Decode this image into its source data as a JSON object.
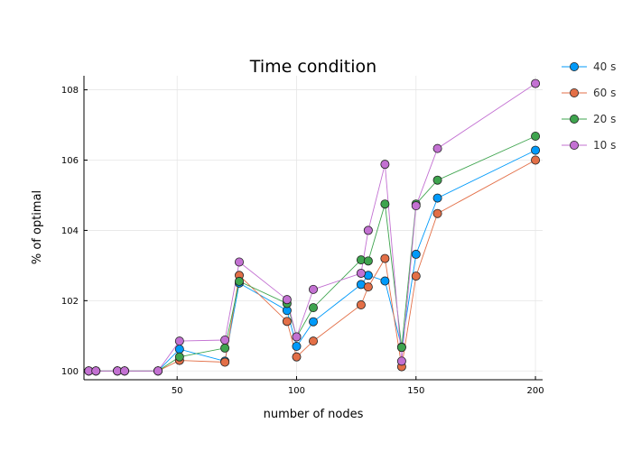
{
  "chart_data": {
    "type": "line",
    "title": "Time condition",
    "xlabel": "number of nodes",
    "ylabel": "% of optimal",
    "xlim": [
      11,
      203
    ],
    "ylim": [
      99.75,
      108.4
    ],
    "xticks": [
      50,
      100,
      150,
      200
    ],
    "yticks": [
      100,
      102,
      104,
      106,
      108
    ],
    "grid": true,
    "legend_position": "top-right",
    "x": [
      13,
      16,
      25,
      28,
      42,
      51,
      70,
      76,
      96,
      100,
      107,
      127,
      130,
      137,
      144,
      150,
      159,
      200
    ],
    "series": [
      {
        "name": "40 s",
        "color": "#009AFA",
        "values": [
          100,
          100,
          100,
          100,
          100,
          100.62,
          100.28,
          102.5,
          101.72,
          100.7,
          101.4,
          102.46,
          102.72,
          102.56,
          100.68,
          103.32,
          104.92,
          106.28
        ]
      },
      {
        "name": "60 s",
        "color": "#E36F47",
        "values": [
          100,
          100,
          100,
          100,
          100,
          100.3,
          100.25,
          102.72,
          101.41,
          100.4,
          100.85,
          101.88,
          102.39,
          103.2,
          100.12,
          102.7,
          104.48,
          106.0
        ]
      },
      {
        "name": "20 s",
        "color": "#3EA44E",
        "values": [
          100,
          100,
          100,
          100,
          100,
          100.4,
          100.65,
          102.55,
          101.92,
          100.97,
          101.8,
          103.16,
          103.13,
          104.75,
          100.67,
          104.75,
          105.43,
          106.68
        ]
      },
      {
        "name": "10 s",
        "color": "#C371D2",
        "values": [
          100,
          100,
          100,
          100,
          100,
          100.85,
          100.88,
          103.1,
          102.03,
          100.97,
          102.32,
          102.78,
          104.0,
          105.88,
          100.28,
          104.7,
          106.33,
          108.18
        ]
      }
    ]
  }
}
